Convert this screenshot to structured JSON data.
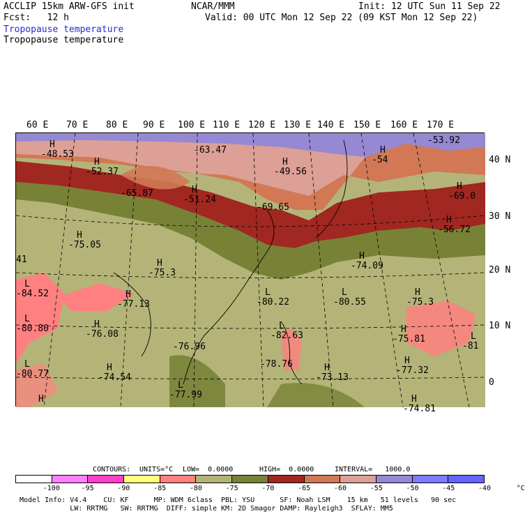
{
  "header": {
    "model": "ACCLIP 15km ARW-GFS init",
    "org": "NCAR/MMM",
    "init": "Init: 12 UTC Sun 11 Sep 22",
    "fcst": "Fcst:   12 h",
    "valid": "Valid: 00 UTC Mon 12 Sep 22 (09 KST Mon 12 Sep 22)",
    "field_blue": "Tropopause temperature",
    "field_black": "Tropopause temperature"
  },
  "lon_labels": [
    "60 E",
    "70 E",
    "80 E",
    "90 E",
    "100 E",
    "110 E",
    "120 E",
    "130 E",
    "140 E",
    "150 E",
    "160 E",
    "170 E"
  ],
  "lat_labels": [
    "40 N",
    "30 N",
    "20 N",
    "10 N",
    "0"
  ],
  "extrema": [
    {
      "hl": "H",
      "value": "-48.53"
    },
    {
      "hl": "H",
      "value": "-52.37"
    },
    {
      "hl": "",
      "value": "-63.47"
    },
    {
      "hl": "H",
      "value": "-49.56"
    },
    {
      "hl": "H",
      "value": "-54"
    },
    {
      "hl": "",
      "value": "-53.92"
    },
    {
      "hl": "",
      "value": "-65.87"
    },
    {
      "hl": "H",
      "value": "-51.24"
    },
    {
      "hl": "",
      "value": "-69.65"
    },
    {
      "hl": "H",
      "value": "-69.0"
    },
    {
      "hl": "H",
      "value": "-56.72"
    },
    {
      "hl": "H",
      "value": "-75.05"
    },
    {
      "hl": "",
      "value": "41"
    },
    {
      "hl": "H",
      "value": "-75.3"
    },
    {
      "hl": "H",
      "value": "-74.09"
    },
    {
      "hl": "L",
      "value": "-84.52"
    },
    {
      "hl": "H",
      "value": "-77.13"
    },
    {
      "hl": "L",
      "value": "-80.22"
    },
    {
      "hl": "L",
      "value": "-80.55"
    },
    {
      "hl": "H",
      "value": "-75.3"
    },
    {
      "hl": "L",
      "value": "-80.80"
    },
    {
      "hl": "H",
      "value": "-76.08"
    },
    {
      "hl": "L",
      "value": "-82.63"
    },
    {
      "hl": "H",
      "value": "-75.81"
    },
    {
      "hl": "L",
      "value": "-81"
    },
    {
      "hl": "",
      "value": "-76.96"
    },
    {
      "hl": "L",
      "value": "-80.77"
    },
    {
      "hl": "H",
      "value": "-74.54"
    },
    {
      "hl": "",
      "value": "-78.76"
    },
    {
      "hl": "H",
      "value": "-73.13"
    },
    {
      "hl": "H",
      "value": "-77.32"
    },
    {
      "hl": "L",
      "value": "-77.99"
    },
    {
      "hl": "H",
      "value": ""
    },
    {
      "hl": "H",
      "value": "-74.81"
    }
  ],
  "contour_info": {
    "contours": "CONTOURS:",
    "units": "UNITS=°C",
    "low": "LOW=  0.0000",
    "high": "HIGH=  0.0000",
    "interval": "INTERVAL=   1000.0"
  },
  "scale": {
    "colors": [
      "#ffffff",
      "#ff80ff",
      "#ff40c8",
      "#ffff80",
      "#ff8080",
      "#b4b478",
      "#788237",
      "#a02820",
      "#d27855",
      "#dca096",
      "#9688d2",
      "#7c7cff",
      "#6464ff"
    ],
    "ticks": [
      "-100",
      "-95",
      "-90",
      "-85",
      "-80",
      "-75",
      "-70",
      "-65",
      "-60",
      "-55",
      "-50",
      "-45",
      "-40",
      "°C"
    ]
  },
  "footer": {
    "line1": "Model Info: V4.4    CU: KF      MP: WDM 6class  PBL: YSU      SF: Noah LSM    15 km   51 levels   90 sec",
    "line2": "            LW: RRTMG   SW: RRTMG  DIFF: simple KM: 2D Smagor DAMP: Rayleigh3  SFLAY: MM5"
  }
}
